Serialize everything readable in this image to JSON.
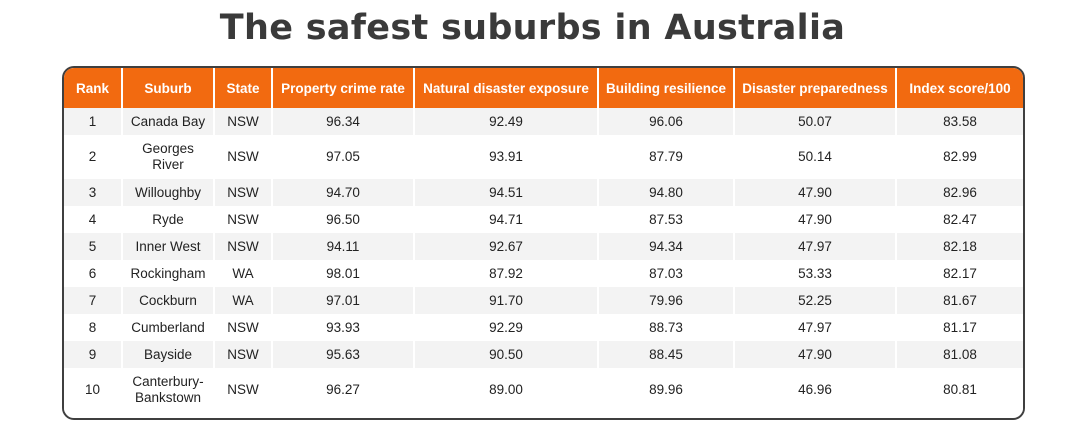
{
  "title": "The safest suburbs in Australia",
  "colors": {
    "header_bg": "#f26a10",
    "header_text": "#ffffff",
    "stripe": "#f3f3f3",
    "title": "#3a3a3a"
  },
  "chart_data": {
    "type": "table",
    "title": "The safest suburbs in Australia",
    "columns": [
      "Rank",
      "Suburb",
      "State",
      "Property crime rate",
      "Natural disaster exposure",
      "Building resilience",
      "Disaster preparedness",
      "Index score/100"
    ],
    "rows": [
      [
        "1",
        "Canada Bay",
        "NSW",
        "96.34",
        "92.49",
        "96.06",
        "50.07",
        "83.58"
      ],
      [
        "2",
        "Georges River",
        "NSW",
        "97.05",
        "93.91",
        "87.79",
        "50.14",
        "82.99"
      ],
      [
        "3",
        "Willoughby",
        "NSW",
        "94.70",
        "94.51",
        "94.80",
        "47.90",
        "82.96"
      ],
      [
        "4",
        "Ryde",
        "NSW",
        "96.50",
        "94.71",
        "87.53",
        "47.90",
        "82.47"
      ],
      [
        "5",
        "Inner West",
        "NSW",
        "94.11",
        "92.67",
        "94.34",
        "47.97",
        "82.18"
      ],
      [
        "6",
        "Rockingham",
        "WA",
        "98.01",
        "87.92",
        "87.03",
        "53.33",
        "82.17"
      ],
      [
        "7",
        "Cockburn",
        "WA",
        "97.01",
        "91.70",
        "79.96",
        "52.25",
        "81.67"
      ],
      [
        "8",
        "Cumberland",
        "NSW",
        "93.93",
        "92.29",
        "88.73",
        "47.97",
        "81.17"
      ],
      [
        "9",
        "Bayside",
        "NSW",
        "95.63",
        "90.50",
        "88.45",
        "47.90",
        "81.08"
      ],
      [
        "10",
        "Canterbury-Bankstown",
        "NSW",
        "96.27",
        "89.00",
        "89.96",
        "46.96",
        "80.81"
      ]
    ]
  }
}
